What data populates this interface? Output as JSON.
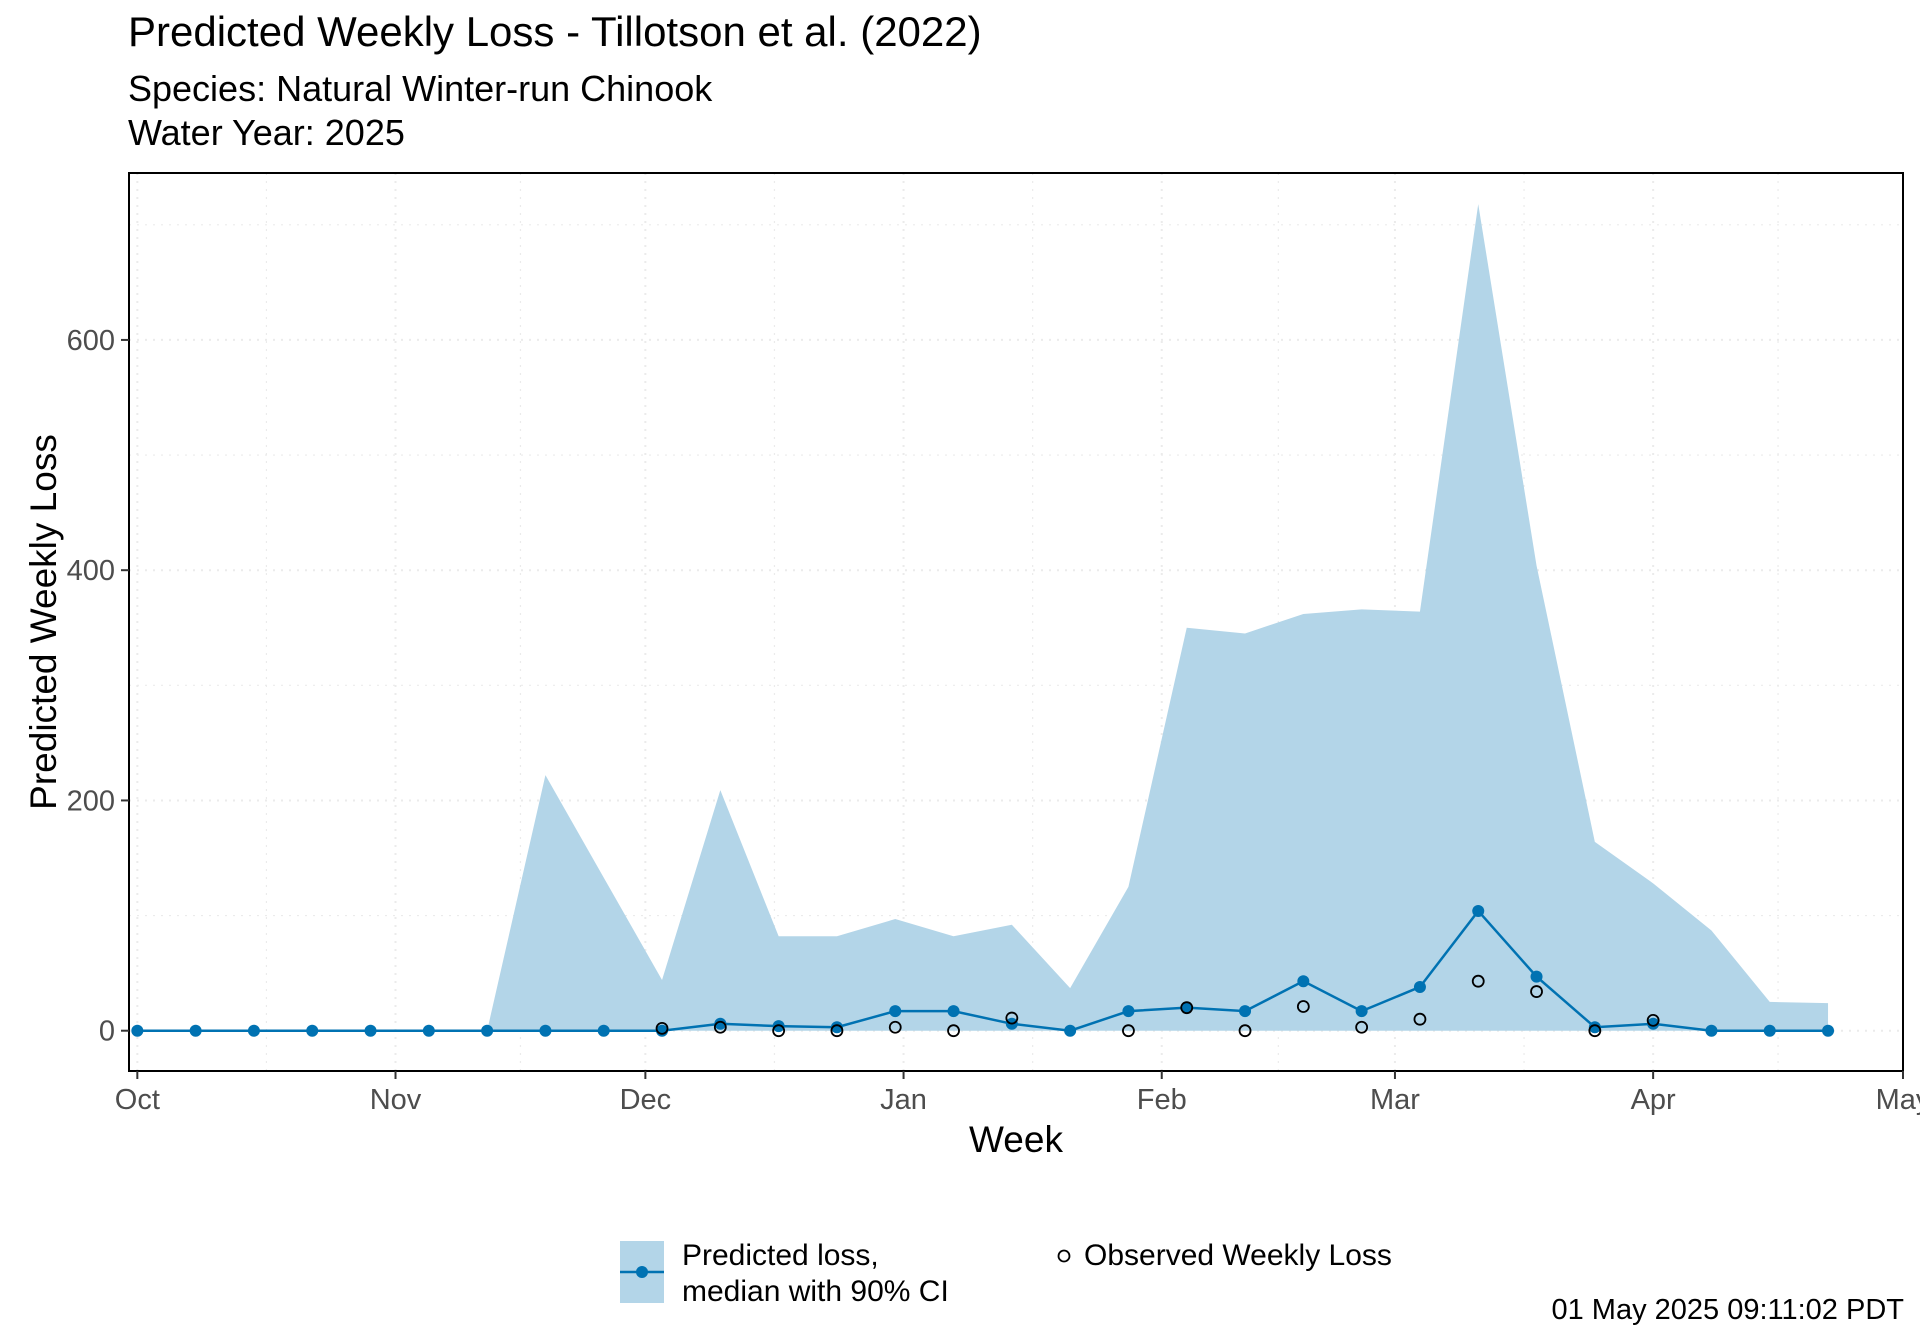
{
  "title": "Predicted Weekly Loss - Tillotson et al. (2022)",
  "subtitle_lines": [
    "Species: Natural Winter-run Chinook",
    "Water Year: 2025"
  ],
  "timestamp": "01 May 2025 09:11:02 PDT",
  "colors": {
    "ribbon": "#b3d5e8",
    "median": "#0072b2",
    "observed": "#000000",
    "grid": "#ebebeb",
    "panel_border": "#000000"
  },
  "chart_data": {
    "type": "line",
    "xlabel": "Week",
    "ylabel": "Predicted Weekly Loss",
    "xlim": [
      "2024-09-30",
      "2025-05-01"
    ],
    "ylim": [
      -35,
      745
    ],
    "x_ticks": [
      {
        "date": "2024-10-01",
        "label": "Oct"
      },
      {
        "date": "2024-11-01",
        "label": "Nov"
      },
      {
        "date": "2024-12-01",
        "label": "Dec"
      },
      {
        "date": "2025-01-01",
        "label": "Jan"
      },
      {
        "date": "2025-02-01",
        "label": "Feb"
      },
      {
        "date": "2025-03-01",
        "label": "Mar"
      },
      {
        "date": "2025-04-01",
        "label": "Apr"
      },
      {
        "date": "2025-05-01",
        "label": "May"
      }
    ],
    "y_ticks": [
      0,
      200,
      400,
      600
    ],
    "grid": true,
    "legend_position": "bottom",
    "weeks": [
      "2024-10-01",
      "2024-10-08",
      "2024-10-15",
      "2024-10-22",
      "2024-10-29",
      "2024-11-05",
      "2024-11-12",
      "2024-11-19",
      "2024-11-26",
      "2024-12-03",
      "2024-12-10",
      "2024-12-17",
      "2024-12-24",
      "2024-12-31",
      "2025-01-07",
      "2025-01-14",
      "2025-01-21",
      "2025-01-28",
      "2025-02-04",
      "2025-02-11",
      "2025-02-18",
      "2025-02-25",
      "2025-03-04",
      "2025-03-11",
      "2025-03-18",
      "2025-03-25",
      "2025-04-01",
      "2025-04-08",
      "2025-04-15",
      "2025-04-22"
    ],
    "series": [
      {
        "name": "Predicted loss,\nmedian with 90% CI",
        "median": [
          0,
          0,
          0,
          0,
          0,
          0,
          0,
          0,
          0,
          0,
          6,
          4,
          3,
          17,
          17,
          6,
          0,
          17,
          20,
          17,
          43,
          17,
          38,
          104,
          47,
          3,
          6,
          0,
          0,
          0
        ],
        "lower": [
          0,
          0,
          0,
          0,
          0,
          0,
          0,
          0,
          0,
          0,
          0,
          0,
          0,
          0,
          0,
          0,
          0,
          0,
          0,
          0,
          0,
          0,
          0,
          0,
          0,
          0,
          0,
          0,
          0,
          0
        ],
        "upper": [
          0,
          0,
          0,
          0,
          0,
          0,
          0,
          222,
          133,
          44,
          209,
          82,
          82,
          97,
          82,
          92,
          37,
          125,
          350,
          345,
          362,
          366,
          364,
          718,
          404,
          164,
          128,
          87,
          25,
          24
        ]
      },
      {
        "name": "Observed Weekly Loss",
        "weeks": [
          "2024-12-03",
          "2024-12-10",
          "2024-12-17",
          "2024-12-24",
          "2024-12-31",
          "2025-01-07",
          "2025-01-14",
          "2025-01-28",
          "2025-02-04",
          "2025-02-11",
          "2025-02-18",
          "2025-02-25",
          "2025-03-04",
          "2025-03-11",
          "2025-03-18",
          "2025-03-25",
          "2025-04-01"
        ],
        "values": [
          2,
          3,
          0,
          0,
          3,
          0,
          11,
          0,
          20,
          0,
          21,
          3,
          10,
          43,
          34,
          0,
          9
        ]
      }
    ]
  }
}
